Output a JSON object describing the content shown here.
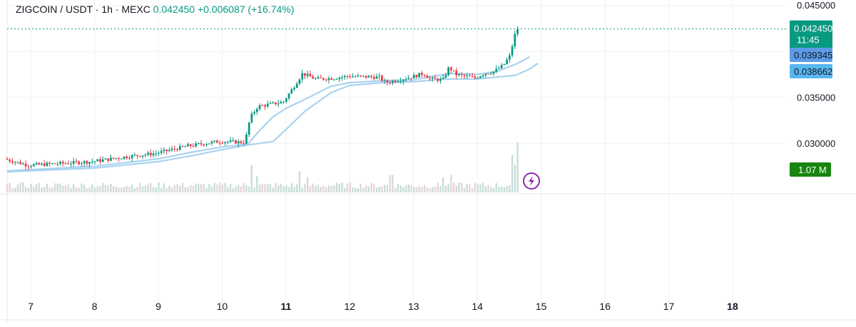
{
  "header": {
    "symbol": "ZIGCOIN / USDT · 1h · MEXC",
    "last": "0.042450",
    "change": "+0.006087 (+16.74%)"
  },
  "colors": {
    "up": "#089981",
    "down": "#f23645",
    "ma_line": "#a9d3ef",
    "volume_up": "#c7ded8",
    "volume_down": "#e3d5d7",
    "grid": "#eef0f3",
    "last_price_badge": "#089981",
    "ma_badge_1": "#5b9be6",
    "ma_badge_2": "#58b6f0",
    "volume_badge": "#18850e",
    "lightning": "#8c2bab"
  },
  "chart_data": {
    "type": "candlestick",
    "timeframe": "1h",
    "y_ticks": [
      "0.035000",
      "0.030000"
    ],
    "y_range": [
      0.0245,
      0.0456
    ],
    "x_ticks": [
      "7",
      "8",
      "9",
      "10",
      "11",
      "12",
      "13",
      "14",
      "15",
      "16",
      "17",
      "18"
    ],
    "x_bold_ticks": [
      "11",
      "18"
    ],
    "x_range_days": [
      6.63,
      18.85
    ],
    "price_anchors": [
      [
        6.63,
        0.0283
      ],
      [
        7.0,
        0.0276
      ],
      [
        7.5,
        0.0278
      ],
      [
        8.0,
        0.028
      ],
      [
        8.5,
        0.0285
      ],
      [
        9.0,
        0.0289
      ],
      [
        9.5,
        0.0297
      ],
      [
        10.0,
        0.0302
      ],
      [
        10.4,
        0.0301
      ],
      [
        10.48,
        0.0328
      ],
      [
        10.6,
        0.034
      ],
      [
        11.0,
        0.0345
      ],
      [
        11.15,
        0.036
      ],
      [
        11.3,
        0.0376
      ],
      [
        11.5,
        0.037
      ],
      [
        11.8,
        0.0371
      ],
      [
        12.0,
        0.0373
      ],
      [
        12.5,
        0.0372
      ],
      [
        12.6,
        0.0366
      ],
      [
        13.0,
        0.0372
      ],
      [
        13.2,
        0.0376
      ],
      [
        13.3,
        0.037
      ],
      [
        13.5,
        0.0369
      ],
      [
        13.6,
        0.0383
      ],
      [
        13.7,
        0.0375
      ],
      [
        14.0,
        0.0371
      ],
      [
        14.15,
        0.0376
      ],
      [
        14.3,
        0.0378
      ],
      [
        14.45,
        0.0385
      ],
      [
        14.55,
        0.0395
      ],
      [
        14.63,
        0.0418
      ],
      [
        14.66,
        0.04245
      ]
    ],
    "ma_fast": {
      "value": "0.039345",
      "points": [
        [
          6.63,
          0.027
        ],
        [
          8.0,
          0.0275
        ],
        [
          9.0,
          0.0283
        ],
        [
          9.5,
          0.029
        ],
        [
          10.0,
          0.0296
        ],
        [
          10.4,
          0.0299
        ],
        [
          10.6,
          0.0315
        ],
        [
          10.8,
          0.0329
        ],
        [
          11.0,
          0.0338
        ],
        [
          11.3,
          0.0348
        ],
        [
          11.7,
          0.0362
        ],
        [
          12.0,
          0.0366
        ],
        [
          12.5,
          0.0368
        ],
        [
          13.0,
          0.0369
        ],
        [
          13.3,
          0.0373
        ],
        [
          13.6,
          0.0376
        ],
        [
          14.0,
          0.0375
        ],
        [
          14.3,
          0.0378
        ],
        [
          14.6,
          0.0386
        ],
        [
          14.82,
          0.0394
        ]
      ]
    },
    "ma_slow": {
      "value": "0.038662",
      "points": [
        [
          6.63,
          0.0269
        ],
        [
          8.0,
          0.0273
        ],
        [
          9.0,
          0.028
        ],
        [
          9.5,
          0.0286
        ],
        [
          10.0,
          0.0293
        ],
        [
          10.4,
          0.0298
        ],
        [
          10.8,
          0.0302
        ],
        [
          11.0,
          0.0315
        ],
        [
          11.3,
          0.0335
        ],
        [
          11.7,
          0.0355
        ],
        [
          12.0,
          0.0363
        ],
        [
          12.5,
          0.0366
        ],
        [
          13.0,
          0.0367
        ],
        [
          13.5,
          0.037
        ],
        [
          14.0,
          0.037
        ],
        [
          14.3,
          0.0372
        ],
        [
          14.6,
          0.0374
        ],
        [
          14.82,
          0.0381
        ],
        [
          14.95,
          0.0387
        ]
      ]
    },
    "last_price": "0.042450",
    "countdown": "11:45",
    "volume_label": "1.07 M",
    "volume_spikes": [
      [
        10.45,
        0.55
      ],
      [
        10.55,
        0.32
      ],
      [
        11.2,
        0.42
      ],
      [
        11.35,
        0.3
      ],
      [
        12.65,
        0.35
      ],
      [
        13.45,
        0.3
      ],
      [
        13.6,
        0.35
      ],
      [
        14.55,
        0.75
      ],
      [
        14.6,
        0.55
      ],
      [
        14.63,
        1.0
      ]
    ]
  }
}
